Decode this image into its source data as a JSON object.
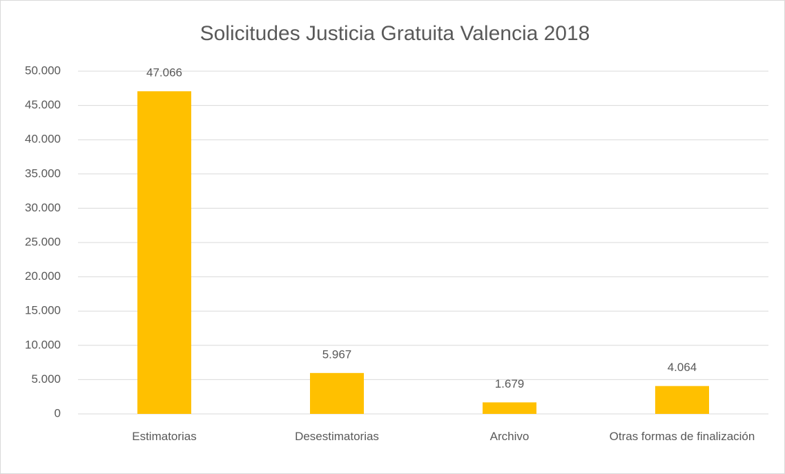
{
  "chart_data": {
    "type": "bar",
    "title": "Solicitudes Justicia Gratuita Valencia 2018",
    "categories": [
      "Estimatorias",
      "Desestimatorias",
      "Archivo",
      "Otras formas de finalización"
    ],
    "values": [
      47066,
      5967,
      1679,
      4064
    ],
    "value_labels": [
      "47.066",
      "5.967",
      "1.679",
      "4.064"
    ],
    "color": "#ffc000",
    "ylim": [
      0,
      50000
    ],
    "yticks": [
      0,
      {
        "value": 5000,
        "label": "5.000"
      },
      {
        "value": 10000,
        "label": "10.000"
      },
      {
        "value": 15000,
        "label": "15.000"
      },
      {
        "value": 20000,
        "label": "20.000"
      },
      {
        "value": 25000,
        "label": "25.000"
      },
      {
        "value": 30000,
        "label": "30.000"
      },
      {
        "value": 35000,
        "label": "35.000"
      },
      {
        "value": 40000,
        "label": "40.000"
      },
      {
        "value": 45000,
        "label": "45.000"
      },
      {
        "value": 50000,
        "label": "50.000"
      }
    ],
    "grid": true
  }
}
